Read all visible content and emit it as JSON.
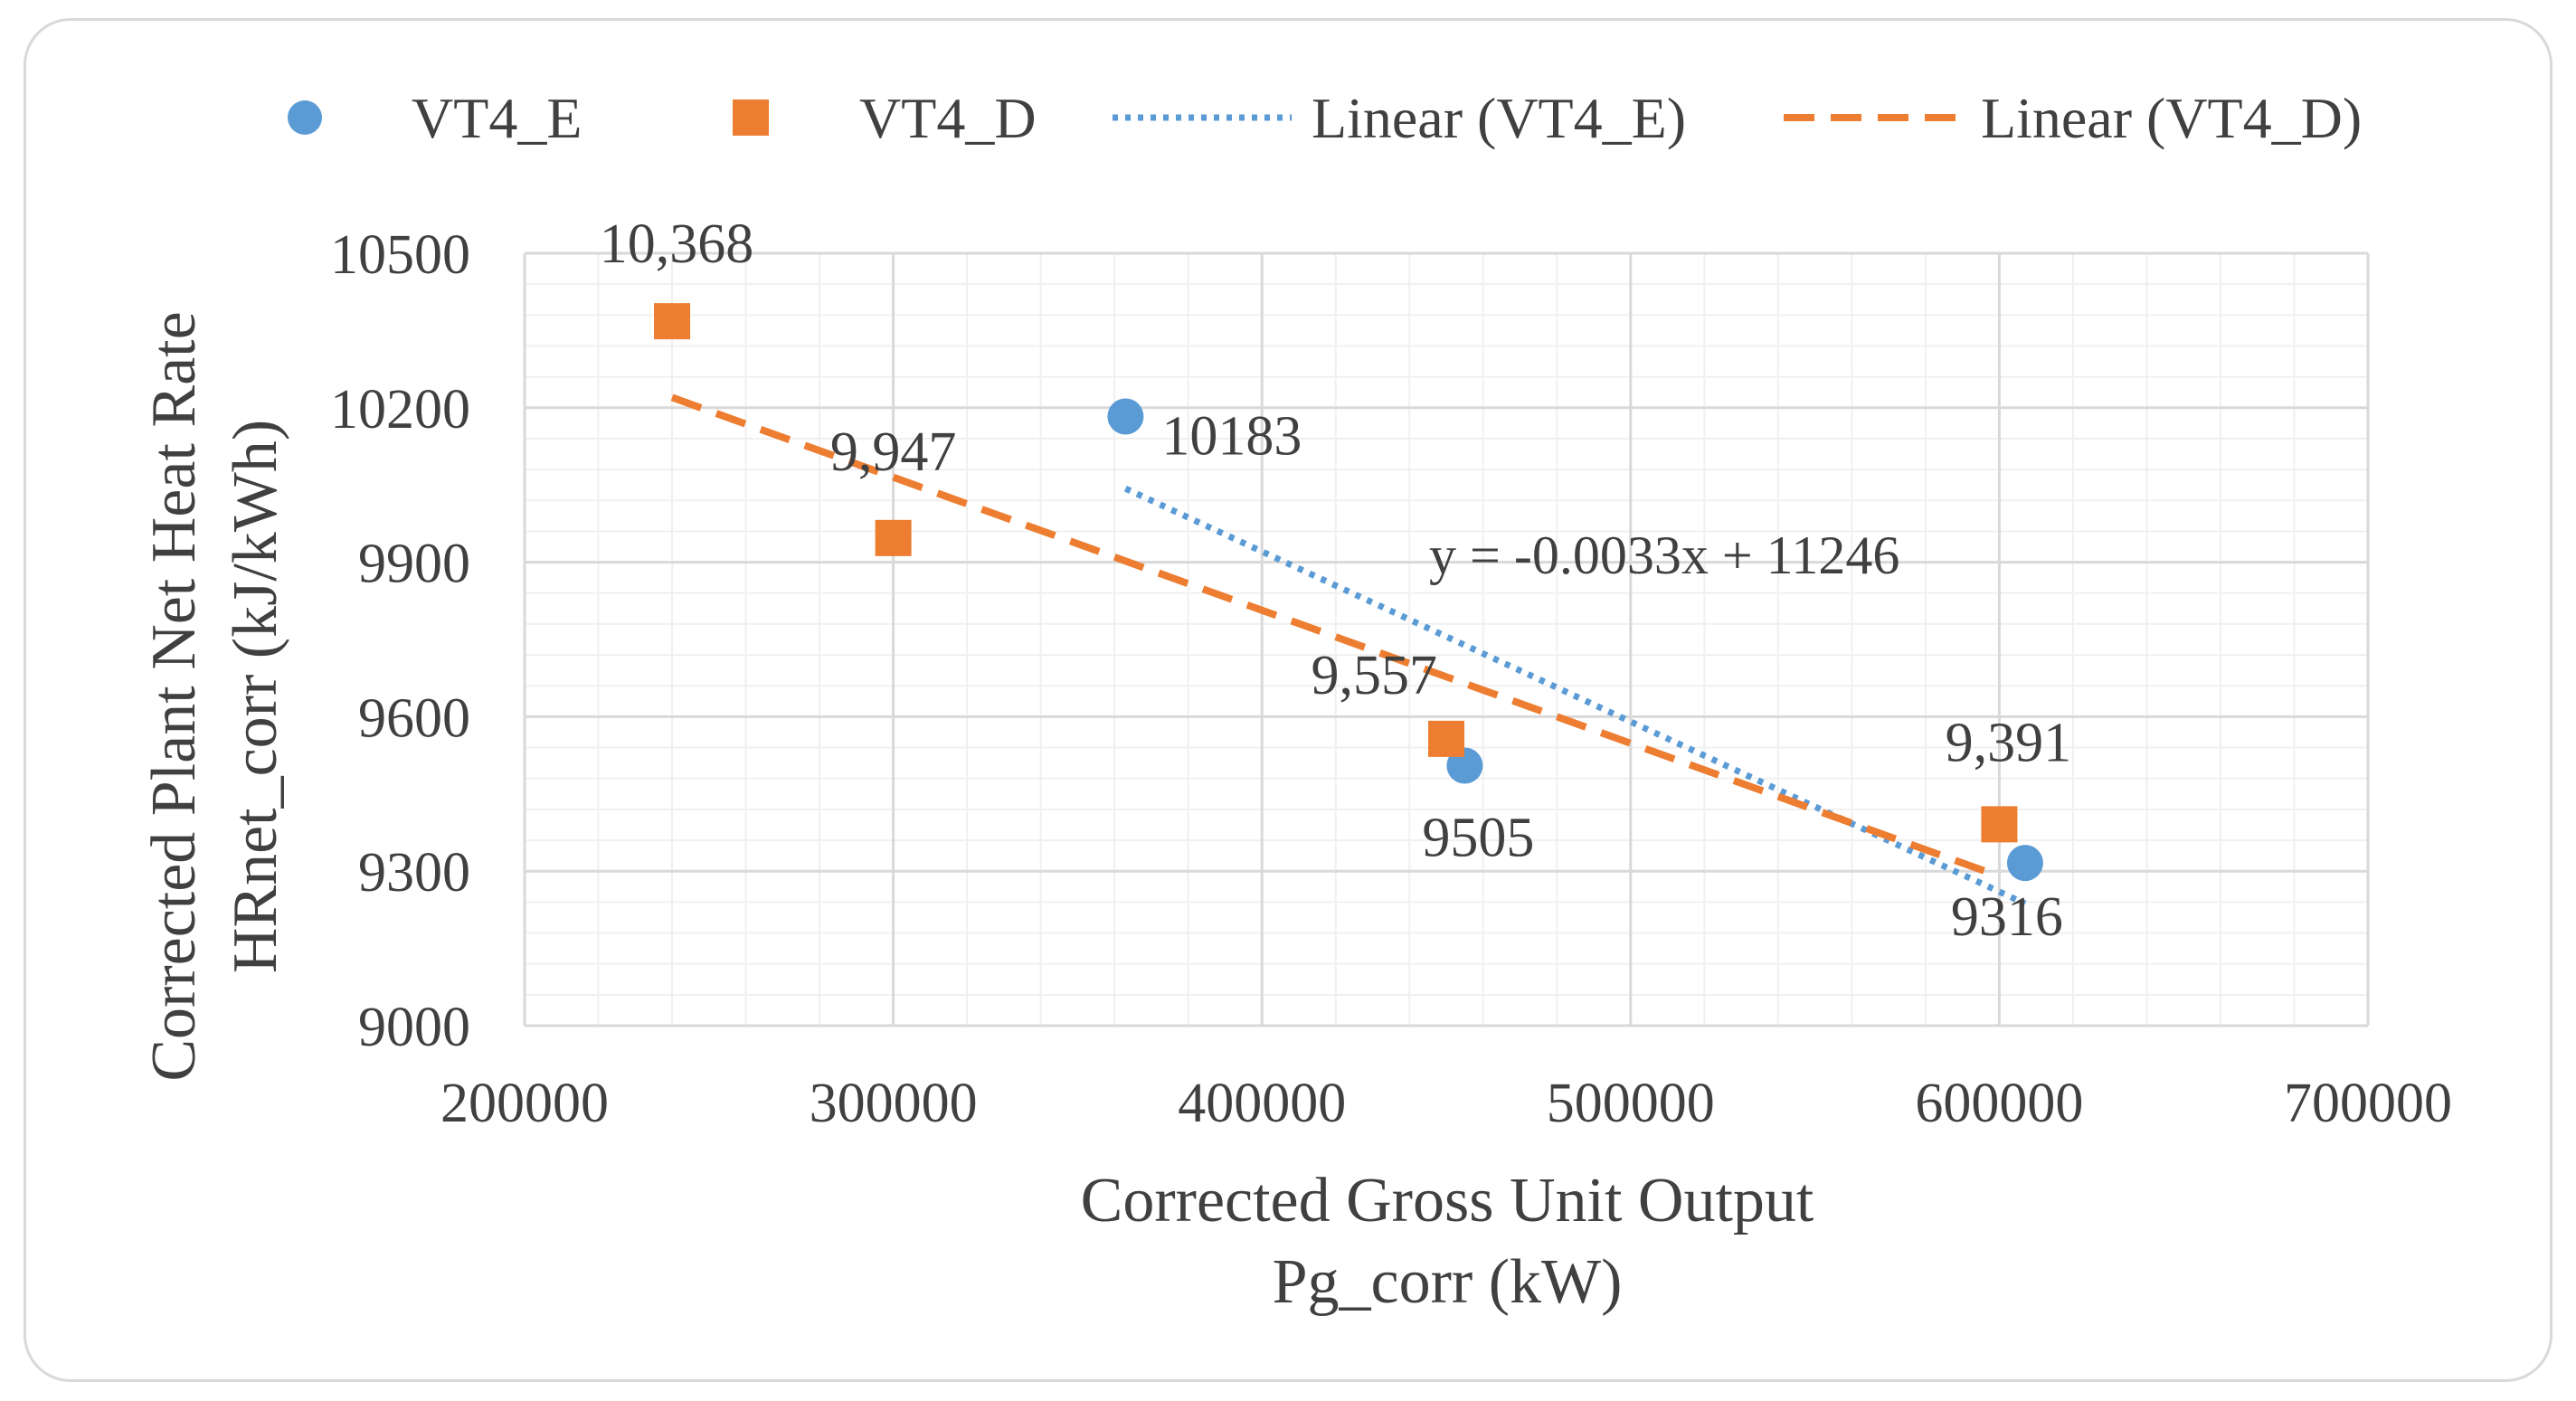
{
  "chart_data": {
    "type": "scatter",
    "xlabel_line1": "Corrected Gross Unit Output",
    "xlabel_line2": "Pg_corr (kW)",
    "ylabel_line1": "Corrected Plant Net Heat Rate",
    "ylabel_line2": "HRnet_corr (kJ/kWh)",
    "xlim": [
      200000,
      700000
    ],
    "ylim": [
      9000,
      10500
    ],
    "x_ticks": [
      "200000",
      "300000",
      "400000",
      "500000",
      "600000",
      "700000"
    ],
    "y_ticks": [
      "9000",
      "9300",
      "9600",
      "9900",
      "10200",
      "10500"
    ],
    "grid": true,
    "legend_position": "top",
    "legend": {
      "vt4e": "VT4_E",
      "vt4d": "VT4_D",
      "lin_e": "Linear (VT4_E)",
      "lin_d": "Linear (VT4_D)"
    },
    "series": [
      {
        "name": "VT4_E",
        "color": "#5b9bd5",
        "marker": "circle",
        "points": [
          {
            "x": 363000,
            "y": 10183,
            "label": "10183"
          },
          {
            "x": 455000,
            "y": 9505,
            "label": "9505"
          },
          {
            "x": 607000,
            "y": 9316,
            "label": "9316"
          }
        ]
      },
      {
        "name": "VT4_D",
        "color": "#ed7d31",
        "marker": "square",
        "points": [
          {
            "x": 240000,
            "y": 10368,
            "label": "10,368"
          },
          {
            "x": 300000,
            "y": 9947,
            "label": "9,947"
          },
          {
            "x": 450000,
            "y": 9557,
            "label": "9,557"
          },
          {
            "x": 600000,
            "y": 9391,
            "label": "9,391"
          }
        ]
      }
    ],
    "trendlines": [
      {
        "name": "Linear (VT4_E)",
        "color": "#5b9bd5",
        "style": "dotted",
        "x": [
          363000,
          607000
        ],
        "y": [
          10043,
          9237
        ]
      },
      {
        "name": "Linear (VT4_D)",
        "color": "#ed7d31",
        "style": "dashed",
        "x": [
          240000,
          600000
        ],
        "y": [
          10220,
          9290
        ]
      }
    ],
    "equation": "y = -0.0033x + 11246"
  }
}
